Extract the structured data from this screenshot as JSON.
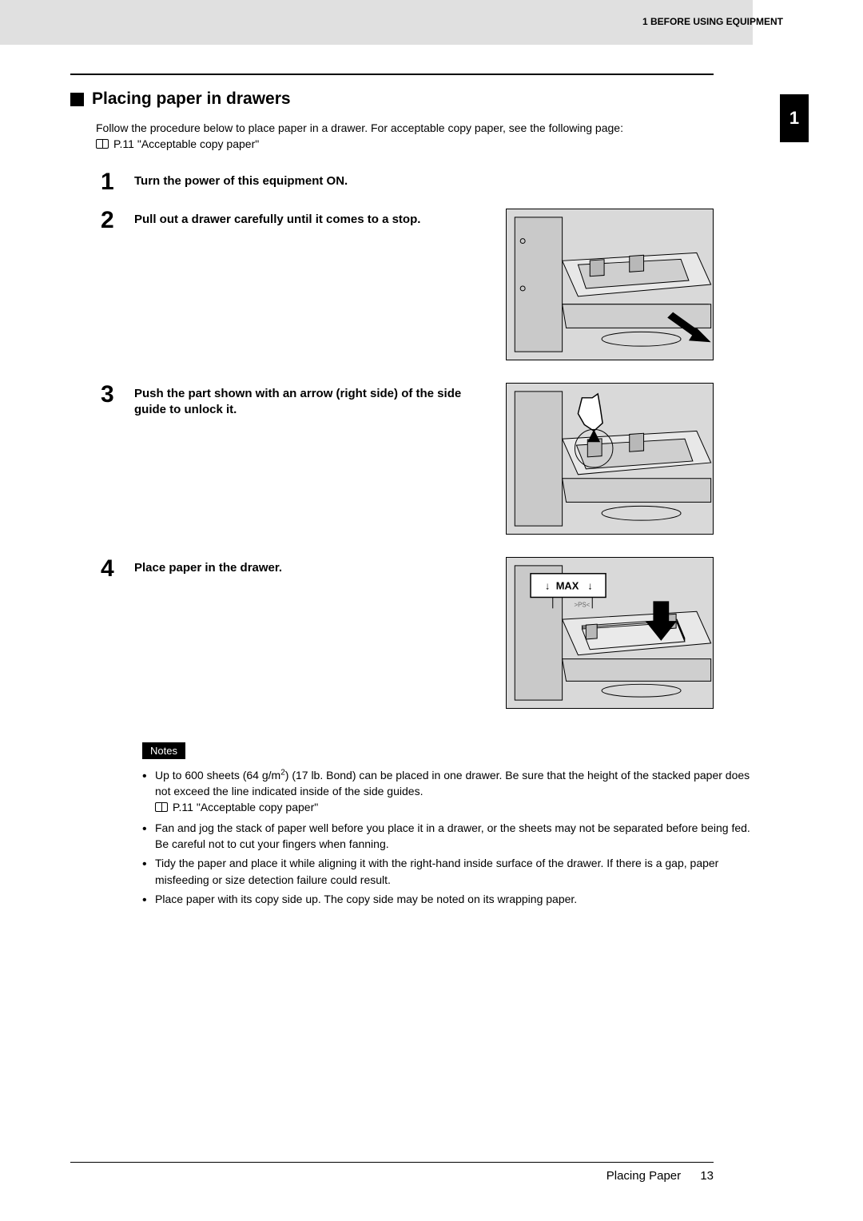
{
  "header": {
    "right_text": "1 BEFORE USING EQUIPMENT",
    "chapter_number": "1"
  },
  "section": {
    "title": "Placing paper in drawers",
    "intro_line": "Follow the procedure below to place paper in a drawer. For acceptable copy paper, see the following page:",
    "intro_ref": "P.11 \"Acceptable copy paper\""
  },
  "steps": [
    {
      "num": "1",
      "title": "Turn the power of this equipment ON.",
      "has_image": false
    },
    {
      "num": "2",
      "title": "Pull out a drawer carefully until it comes to a stop.",
      "has_image": true,
      "image_kind": "drawer_pull"
    },
    {
      "num": "3",
      "title": "Push the part shown with an arrow (right side) of the side guide to unlock it.",
      "has_image": true,
      "image_kind": "press_guide"
    },
    {
      "num": "4",
      "title": "Place paper in the drawer.",
      "has_image": true,
      "image_kind": "place_paper",
      "max_label": "MAX"
    }
  ],
  "notes": {
    "label": "Notes",
    "items": [
      {
        "text": "Up to 600 sheets (64 g/m",
        "sup": "2",
        "text2": ") (17 lb. Bond) can be placed in one drawer. Be sure that the height of the stacked paper does not exceed the line indicated inside of the side guides.",
        "ref": "P.11 \"Acceptable copy paper\""
      },
      {
        "text": "Fan and jog the stack of paper well before you place it in a drawer, or the sheets may not be separated before being fed. Be careful not to cut your fingers when fanning."
      },
      {
        "text": "Tidy the paper and place it while aligning it with the right-hand inside surface of the drawer. If there is a gap, paper misfeeding or size detection failure could result."
      },
      {
        "text": "Place paper with its copy side up. The copy side may be noted on its wrapping paper."
      }
    ]
  },
  "footer": {
    "label": "Placing Paper",
    "page": "13"
  },
  "colors": {
    "banner": "#e0e0e0",
    "figure_bg": "#d9d9d9",
    "text": "#000000"
  }
}
